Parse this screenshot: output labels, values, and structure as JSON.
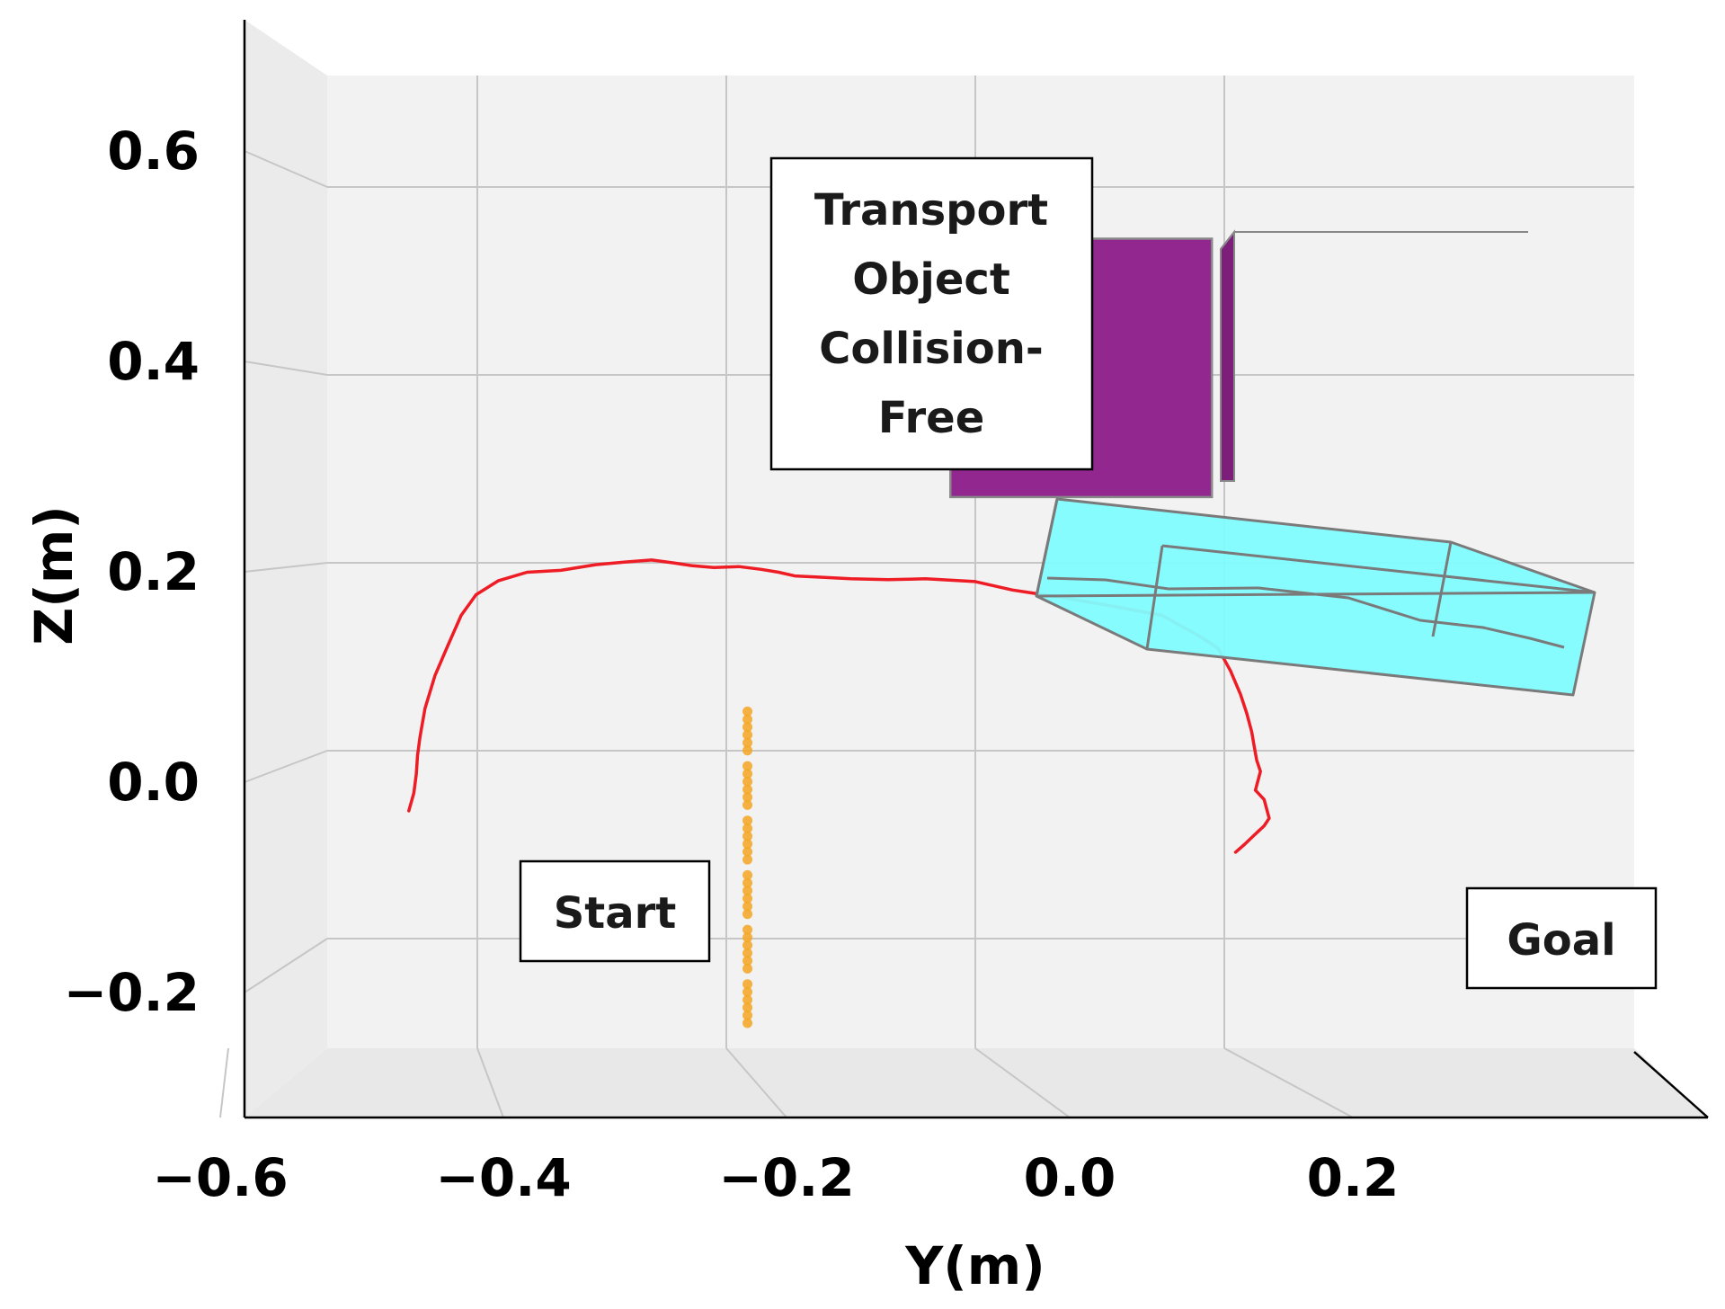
{
  "chart_data": {
    "type": "line",
    "view": "3d-projection",
    "xlabel": "Y(m)",
    "ylabel": "Z(m)",
    "x_ticks": [
      -0.6,
      -0.4,
      -0.2,
      0.0,
      0.2
    ],
    "x_tick_labels": [
      "−0.6",
      "−0.4",
      "−0.2",
      "0.0",
      "0.2"
    ],
    "y_ticks": [
      -0.2,
      0.0,
      0.2,
      0.4,
      0.6
    ],
    "y_tick_labels": [
      "−0.2",
      "0.0",
      "0.2",
      "0.4",
      "0.6"
    ],
    "xlim": [
      -0.72,
      0.31
    ],
    "ylim": [
      -0.31,
      0.69
    ],
    "grid": true,
    "series": [
      {
        "role": "end-effector-trajectory",
        "color": "#ee1c24",
        "x": [
          -0.455,
          -0.451,
          -0.449,
          -0.448,
          -0.446,
          -0.442,
          -0.434,
          -0.424,
          -0.413,
          -0.401,
          -0.383,
          -0.36,
          -0.333,
          -0.305,
          -0.28,
          -0.26,
          -0.243,
          -0.228,
          -0.21,
          -0.19,
          -0.172,
          -0.158,
          -0.145,
          -0.128,
          -0.1,
          -0.07,
          -0.04,
          0.0,
          0.03,
          0.07,
          0.11,
          0.15,
          0.18,
          0.195,
          0.205,
          0.213,
          0.218,
          0.222,
          0.224,
          0.226,
          0.229,
          0.225,
          0.232,
          0.236,
          0.232,
          0.224,
          0.216,
          0.209
        ],
        "y": [
          -0.064,
          -0.045,
          -0.025,
          -0.005,
          0.015,
          0.045,
          0.08,
          0.111,
          0.144,
          0.166,
          0.181,
          0.19,
          0.192,
          0.198,
          0.201,
          0.203,
          0.2,
          0.197,
          0.195,
          0.196,
          0.193,
          0.19,
          0.186,
          0.185,
          0.183,
          0.182,
          0.183,
          0.18,
          0.171,
          0.163,
          0.154,
          0.144,
          0.122,
          0.109,
          0.085,
          0.06,
          0.04,
          0.02,
          0.005,
          -0.01,
          -0.022,
          -0.042,
          -0.052,
          -0.072,
          -0.08,
          -0.09,
          -0.1,
          -0.108
        ]
      },
      {
        "role": "orange-point-column",
        "color": "#f5a623",
        "x": [
          -0.183
        ],
        "y_range": [
          -0.29,
          0.05
        ]
      }
    ],
    "objects": [
      {
        "role": "purple-obstacle-box",
        "color": "#92278f",
        "front_face_y": [
          -0.02,
          0.19
        ],
        "front_face_z": [
          0.27,
          0.545
        ]
      },
      {
        "role": "cyan-transport-object",
        "color": "#7ffcff"
      }
    ],
    "annotations": [
      {
        "id": "start",
        "lines": [
          "Start"
        ]
      },
      {
        "id": "goal",
        "lines": [
          "Goal"
        ]
      },
      {
        "id": "note",
        "lines": [
          "Transport",
          "Object",
          "Collision-",
          "Free"
        ]
      }
    ]
  }
}
